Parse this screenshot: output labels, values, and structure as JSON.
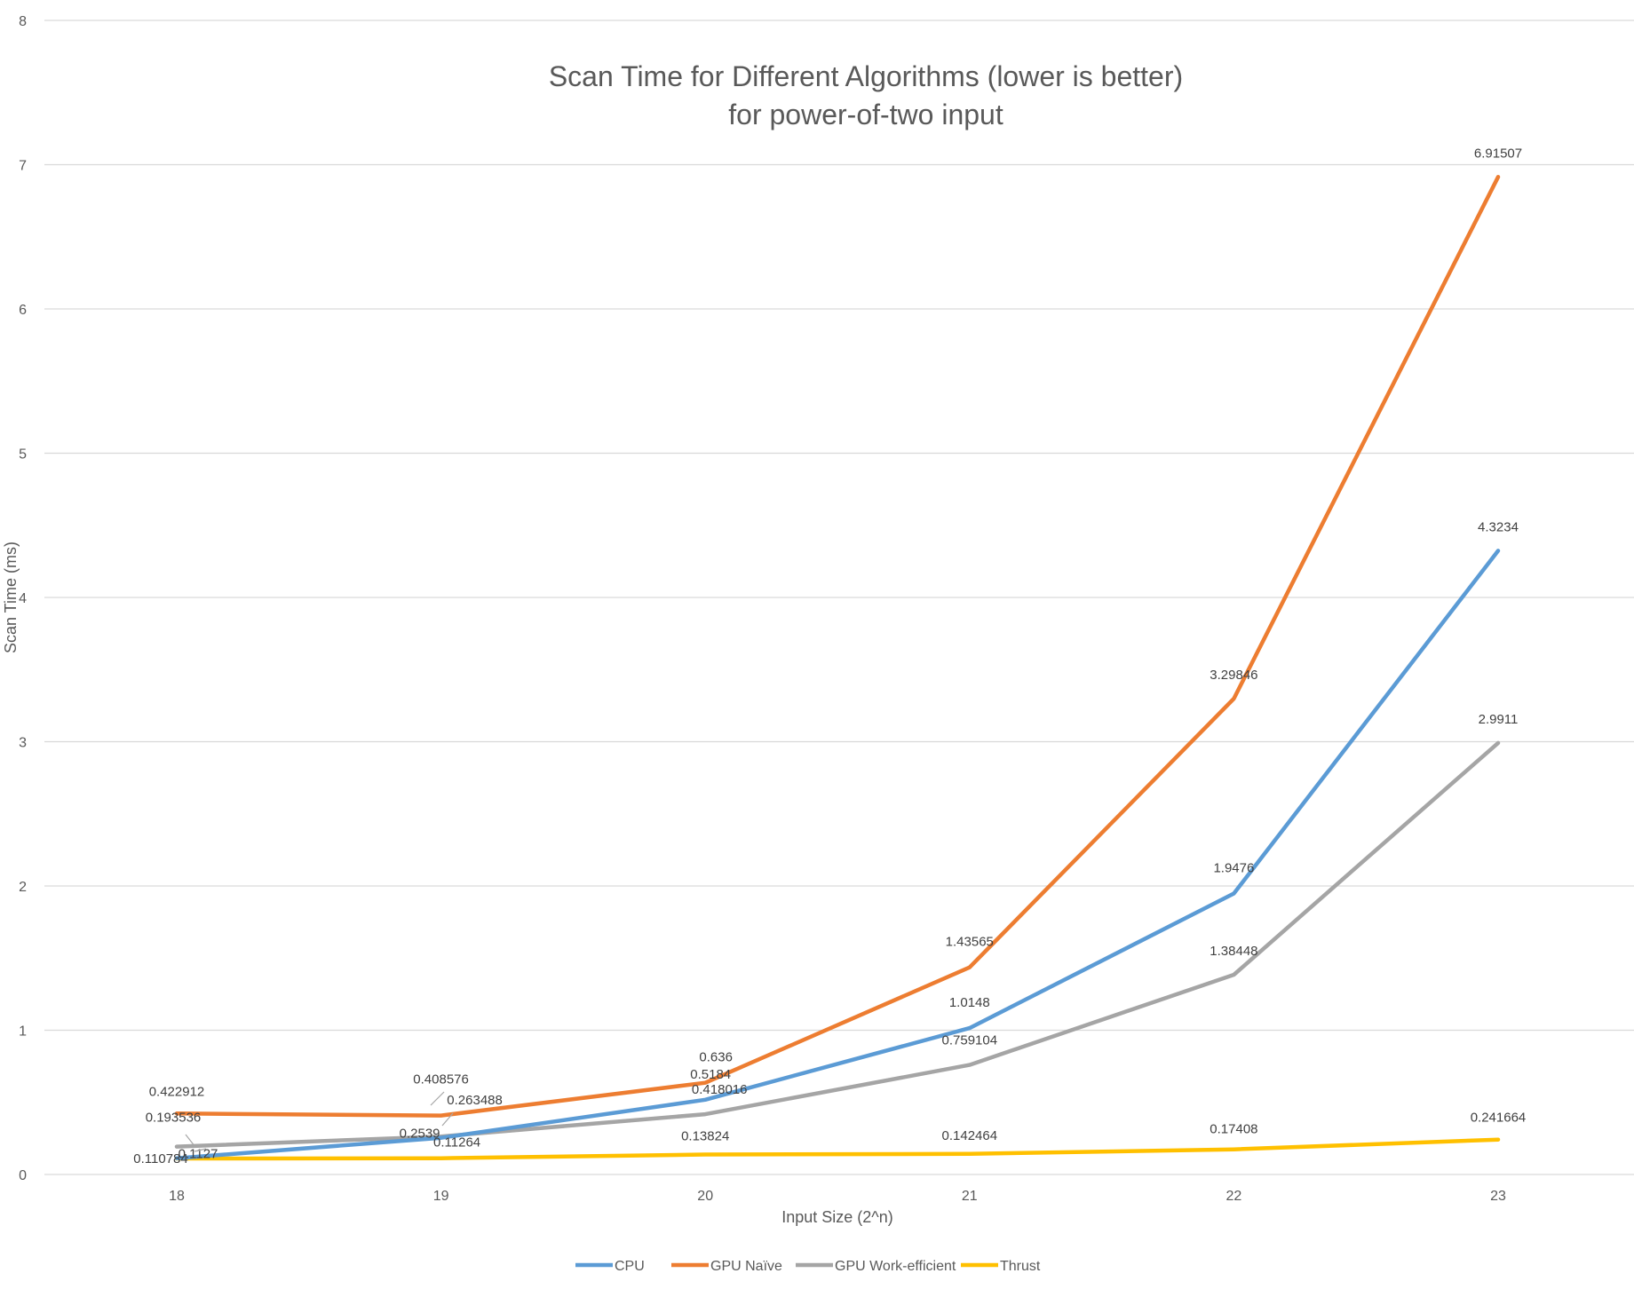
{
  "chart_data": {
    "type": "line",
    "title": "Scan Time for Different Algorithms (lower is better)",
    "subtitle": "for power-of-two input",
    "xlabel": "Input Size (2^n)",
    "ylabel": "Scan Time (ms)",
    "ylim": [
      0,
      8
    ],
    "yticks": [
      "0",
      "1",
      "2",
      "3",
      "4",
      "5",
      "6",
      "7",
      "8"
    ],
    "categories": [
      "18",
      "19",
      "20",
      "21",
      "22",
      "23"
    ],
    "grid": true,
    "legend_position": "bottom",
    "series": [
      {
        "name": "CPU",
        "color": "#5B9BD5",
        "values": [
          0.1127,
          0.2539,
          0.5184,
          1.0148,
          1.9476,
          4.3234
        ],
        "labels": [
          "0.1127",
          "0.2539",
          "0.5184",
          "1.0148",
          "1.9476",
          "4.3234"
        ]
      },
      {
        "name": "GPU Naïve",
        "color": "#ED7D31",
        "values": [
          0.422912,
          0.408576,
          0.636,
          1.43565,
          3.29846,
          6.91507
        ],
        "labels": [
          "0.422912",
          "0.408576",
          "0.636",
          "1.43565",
          "3.29846",
          "6.91507"
        ]
      },
      {
        "name": "GPU Work-efficient",
        "color": "#A5A5A5",
        "values": [
          0.193536,
          0.263488,
          0.418016,
          0.759104,
          1.38448,
          2.9911
        ],
        "labels": [
          "0.193536",
          "0.263488",
          "0.418016",
          "0.759104",
          "1.38448",
          "2.9911"
        ]
      },
      {
        "name": "Thrust",
        "color": "#FFC000",
        "values": [
          0.110784,
          0.11264,
          0.13824,
          0.142464,
          0.17408,
          0.241664
        ],
        "labels": [
          "0.110784",
          "0.11264",
          "0.13824",
          "0.142464",
          "0.17408",
          "0.241664"
        ]
      }
    ]
  }
}
